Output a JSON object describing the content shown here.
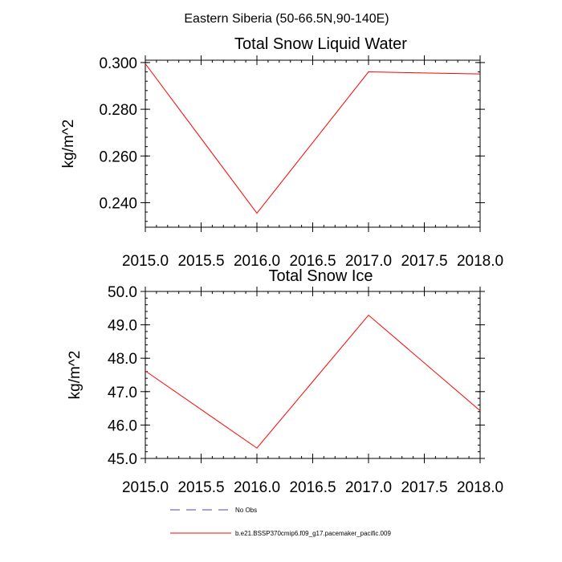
{
  "page_title": "Eastern Siberia (50-66.5N,90-140E)",
  "chart_data": [
    {
      "type": "line",
      "title": "Total Snow Liquid Water",
      "xlabel": "",
      "ylabel": "kg/m^2",
      "xlim": [
        2015.0,
        2018.0
      ],
      "ylim": [
        0.2295,
        0.301
      ],
      "x_ticks": [
        2015.0,
        2015.5,
        2016.0,
        2016.5,
        2017.0,
        2017.5,
        2018.0
      ],
      "x_tick_labels": [
        "2015.0",
        "2015.5",
        "2016.0",
        "2016.5",
        "2017.0",
        "2017.5",
        "2018.0"
      ],
      "y_ticks": [
        0.24,
        0.26,
        0.28,
        0.3
      ],
      "y_tick_labels": [
        "0.240",
        "0.260",
        "0.280",
        "0.300"
      ],
      "y_minor_step": 0.004,
      "x_minor_step": 0.1,
      "grid": false,
      "series": [
        {
          "name": "b.e21.BSSP370cmip6.f09_g17.pacemaker_pacific.009",
          "color": "#ff0000",
          "x": [
            2015,
            2016,
            2017,
            2018
          ],
          "y": [
            0.2995,
            0.2355,
            0.296,
            0.2951
          ]
        }
      ]
    },
    {
      "type": "line",
      "title": "Total Snow Ice",
      "xlabel": "",
      "ylabel": "kg/m^2",
      "xlim": [
        2015.0,
        2018.0
      ],
      "ylim": [
        45.0,
        50.0
      ],
      "x_ticks": [
        2015.0,
        2015.5,
        2016.0,
        2016.5,
        2017.0,
        2017.5,
        2018.0
      ],
      "x_tick_labels": [
        "2015.0",
        "2015.5",
        "2016.0",
        "2016.5",
        "2017.0",
        "2017.5",
        "2018.0"
      ],
      "y_ticks": [
        45.0,
        46.0,
        47.0,
        48.0,
        49.0,
        50.0
      ],
      "y_tick_labels": [
        "45.0",
        "46.0",
        "47.0",
        "48.0",
        "49.0",
        "50.0"
      ],
      "y_minor_step": 0.2,
      "x_minor_step": 0.1,
      "grid": false,
      "series": [
        {
          "name": "b.e21.BSSP370cmip6.f09_g17.pacemaker_pacific.009",
          "color": "#ff0000",
          "x": [
            2015,
            2016,
            2017,
            2018
          ],
          "y": [
            47.62,
            45.31,
            49.29,
            46.43
          ]
        }
      ]
    }
  ],
  "legend": {
    "placement": "bottom",
    "entries": [
      {
        "label": "No Obs",
        "color": "#4a4aa8",
        "style": "dashed"
      },
      {
        "label": "b.e21.BSSP370cmip6.f09_g17.pacemaker_pacific.009",
        "color": "#ff0000",
        "style": "solid"
      }
    ]
  }
}
